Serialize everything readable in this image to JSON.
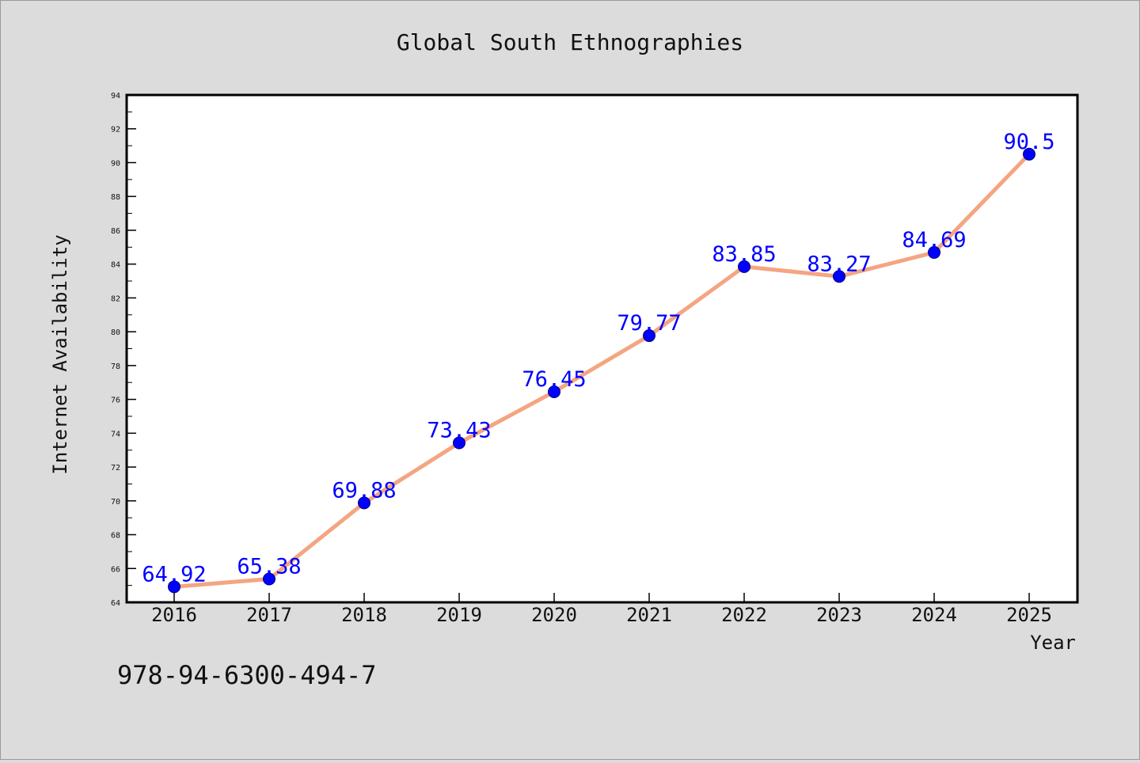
{
  "chart_data": {
    "type": "line",
    "title": "Global South Ethnographies",
    "xlabel": "Year",
    "ylabel": "Internet Availability",
    "categories": [
      "2016",
      "2017",
      "2018",
      "2019",
      "2020",
      "2021",
      "2022",
      "2023",
      "2024",
      "2025"
    ],
    "series": [
      {
        "values": [
          64.92,
          65.38,
          69.88,
          73.43,
          76.45,
          79.77,
          83.85,
          83.27,
          84.69,
          90.5
        ],
        "data_labels": [
          "64.92",
          "65.38",
          "69.88",
          "73.43",
          "76.45",
          "79.77",
          "83.85",
          "83.27",
          "84.69",
          "90.5"
        ]
      }
    ],
    "ylim": [
      64,
      94
    ],
    "yticks": [
      "64",
      "66",
      "68",
      "70",
      "72",
      "74",
      "76",
      "78",
      "80",
      "82",
      "84",
      "86",
      "88",
      "90",
      "92",
      "94"
    ],
    "grid": false,
    "line_color": "#f4a582",
    "marker_color": "#0000ff",
    "label_color": "#0000ff",
    "background_color": "#dcdcdc",
    "plot_background": "#ffffff",
    "annotation": "978-94-6300-494-7"
  }
}
